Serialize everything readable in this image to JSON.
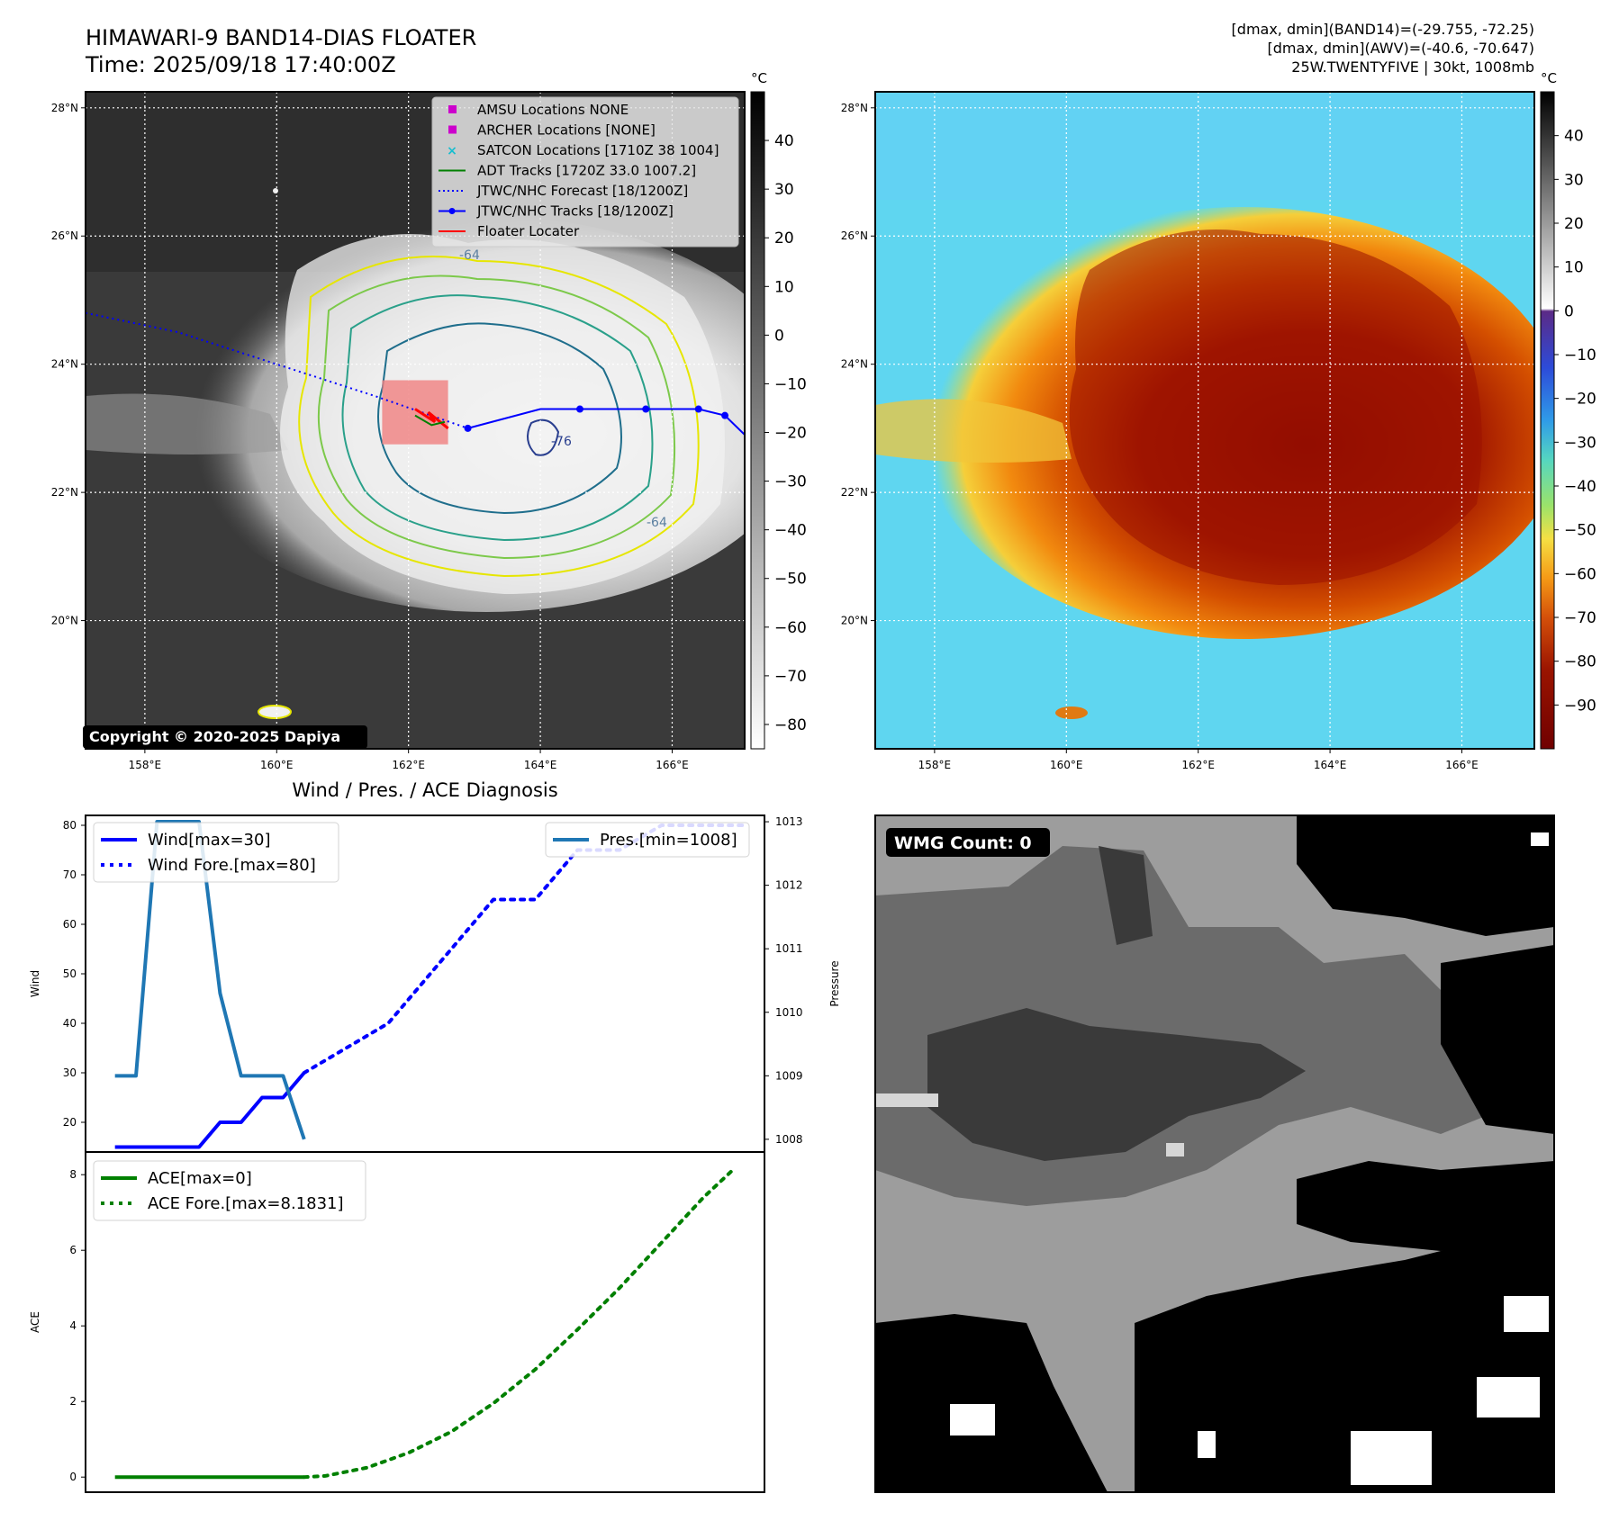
{
  "header": {
    "title_line1": "HIMAWARI-9 BAND14-DIAS FLOATER",
    "title_line2": "Time: 2025/09/18 17:40:00Z",
    "info_line1": "[dmax, dmin](BAND14)=(-29.755, -72.25)",
    "info_line2": "[dmax, dmin](AWV)=(-40.6, -70.647)",
    "info_line3": "25W.TWENTYFIVE | 30kt, 1008mb"
  },
  "maps": {
    "lat_ticks": [
      "28°N",
      "26°N",
      "24°N",
      "22°N",
      "20°N"
    ],
    "lat_values": [
      28,
      26,
      24,
      22,
      20
    ],
    "lon_ticks": [
      "158°E",
      "160°E",
      "162°E",
      "164°E",
      "166°E"
    ],
    "lon_values": [
      158,
      160,
      162,
      164,
      166
    ],
    "lon_range": [
      157.1,
      167.1
    ],
    "lat_range": [
      18.0,
      28.25
    ],
    "copyright": "Copyright © 2020-2025 Dapiya",
    "contour_labels": [
      "-64",
      "-64",
      "-76",
      "-64",
      "-64"
    ],
    "colorbar_unit": "°C",
    "gray_colorbar_ticks": [
      "40",
      "30",
      "20",
      "10",
      "0",
      "−10",
      "−20",
      "−30",
      "−40",
      "−50",
      "−60",
      "−70",
      "−80"
    ],
    "gray_colorbar_values": [
      40,
      30,
      20,
      10,
      0,
      -10,
      -20,
      -30,
      -40,
      -50,
      -60,
      -70,
      -80
    ],
    "gray_colorbar_range": [
      -85,
      50
    ],
    "color_colorbar_ticks": [
      "40",
      "30",
      "20",
      "10",
      "0",
      "−10",
      "−20",
      "−30",
      "−40",
      "−50",
      "−60",
      "−70",
      "−80",
      "−90"
    ],
    "color_colorbar_values": [
      40,
      30,
      20,
      10,
      0,
      -10,
      -20,
      -30,
      -40,
      -50,
      -60,
      -70,
      -80,
      -90
    ],
    "color_colorbar_range": [
      -100,
      50
    ],
    "legend": [
      {
        "label": "AMSU Locations NONE",
        "color": "#cc00cc",
        "kind": "square"
      },
      {
        "label": "ARCHER Locations [NONE]",
        "color": "#cc00cc",
        "kind": "square"
      },
      {
        "label": "SATCON Locations [1710Z 38 1004]",
        "color": "#17becf",
        "kind": "x"
      },
      {
        "label": "ADT Tracks [1720Z 33.0 1007.2]",
        "color": "#008000",
        "kind": "line"
      },
      {
        "label": "JTWC/NHC Forecast [18/1200Z]",
        "color": "#0000ff",
        "kind": "dotted"
      },
      {
        "label": "JTWC/NHC Tracks [18/1200Z]",
        "color": "#0000ff",
        "kind": "linemarker"
      },
      {
        "label": "Floater Locater",
        "color": "#ff0000",
        "kind": "line"
      }
    ],
    "tracks": {
      "jtwc_forecast": [
        [
          157.1,
          24.8
        ],
        [
          158.5,
          24.5
        ],
        [
          160.0,
          24.0
        ],
        [
          161.5,
          23.5
        ],
        [
          162.9,
          23.0
        ]
      ],
      "jtwc_track": [
        [
          162.9,
          23.0
        ],
        [
          164.0,
          23.3
        ],
        [
          164.6,
          23.3
        ],
        [
          165.6,
          23.3
        ],
        [
          166.4,
          23.3
        ],
        [
          166.8,
          23.2
        ],
        [
          167.1,
          22.9
        ]
      ],
      "jtwc_markers": [
        [
          162.9,
          23.0
        ],
        [
          164.6,
          23.3
        ],
        [
          165.6,
          23.3
        ],
        [
          166.4,
          23.3
        ],
        [
          166.8,
          23.2
        ]
      ],
      "floater_box": {
        "lon": [
          161.6,
          162.6
        ],
        "lat": [
          22.75,
          23.75
        ]
      }
    }
  },
  "wmg": {
    "label": "WMG Count: 0"
  },
  "diagnosis": {
    "title": "Wind / Pres. / ACE Diagnosis"
  },
  "chart_data": [
    {
      "type": "line",
      "title": "Wind / Pres. / ACE Diagnosis",
      "ylabel": "Wind",
      "y2label": "Pressure",
      "ylim": [
        14,
        82
      ],
      "y2lim": [
        1007.8,
        1013.1
      ],
      "yticks": [
        20,
        30,
        40,
        50,
        60,
        70,
        80
      ],
      "y2ticks": [
        1008,
        1009,
        1010,
        1011,
        1012,
        1013
      ],
      "legend_left": [
        "Wind[max=30]",
        "Wind Fore.[max=80]"
      ],
      "legend_right": [
        "Pres.[min=1008]"
      ],
      "series": [
        {
          "name": "Wind[max=30]",
          "color": "#0000ff",
          "style": "solid",
          "x": [
            0,
            2,
            4,
            5,
            6,
            7,
            8,
            9
          ],
          "values": [
            15,
            15,
            15,
            20,
            20,
            25,
            25,
            30
          ]
        },
        {
          "name": "Wind Fore.[max=80]",
          "color": "#0000ff",
          "style": "dotted",
          "x": [
            9,
            13,
            15,
            18,
            20,
            22,
            24,
            26,
            28,
            30
          ],
          "values": [
            30,
            40,
            50,
            65,
            65,
            75,
            75,
            80,
            80,
            80
          ]
        },
        {
          "name": "Pres.[min=1008]",
          "color": "#1f77b4",
          "style": "solid",
          "axis": "right",
          "x": [
            0,
            1,
            2,
            3,
            4,
            5,
            6,
            7,
            8,
            9
          ],
          "values": [
            1009,
            1009,
            1013,
            1013,
            1013,
            1010.3,
            1009,
            1009,
            1009,
            1008
          ]
        }
      ],
      "xlim": [
        -1.4,
        30.9
      ]
    },
    {
      "type": "line",
      "ylabel": "ACE",
      "ylim": [
        -0.4,
        8.6
      ],
      "yticks": [
        0,
        2,
        4,
        6,
        8
      ],
      "legend": [
        "ACE[max=0]",
        "ACE Fore.[max=8.1831]"
      ],
      "series": [
        {
          "name": "ACE[max=0]",
          "color": "#008000",
          "style": "solid",
          "x": [
            0,
            9
          ],
          "values": [
            0,
            0
          ]
        },
        {
          "name": "ACE Fore.[max=8.1831]",
          "color": "#008000",
          "style": "dotted",
          "x": [
            9,
            10,
            12,
            14,
            16,
            18,
            20,
            22,
            24,
            26,
            28,
            29.5
          ],
          "values": [
            0,
            0.03,
            0.25,
            0.65,
            1.2,
            1.95,
            2.85,
            3.9,
            5.0,
            6.2,
            7.4,
            8.18
          ]
        }
      ],
      "xlim": [
        -1.4,
        30.9
      ]
    }
  ]
}
